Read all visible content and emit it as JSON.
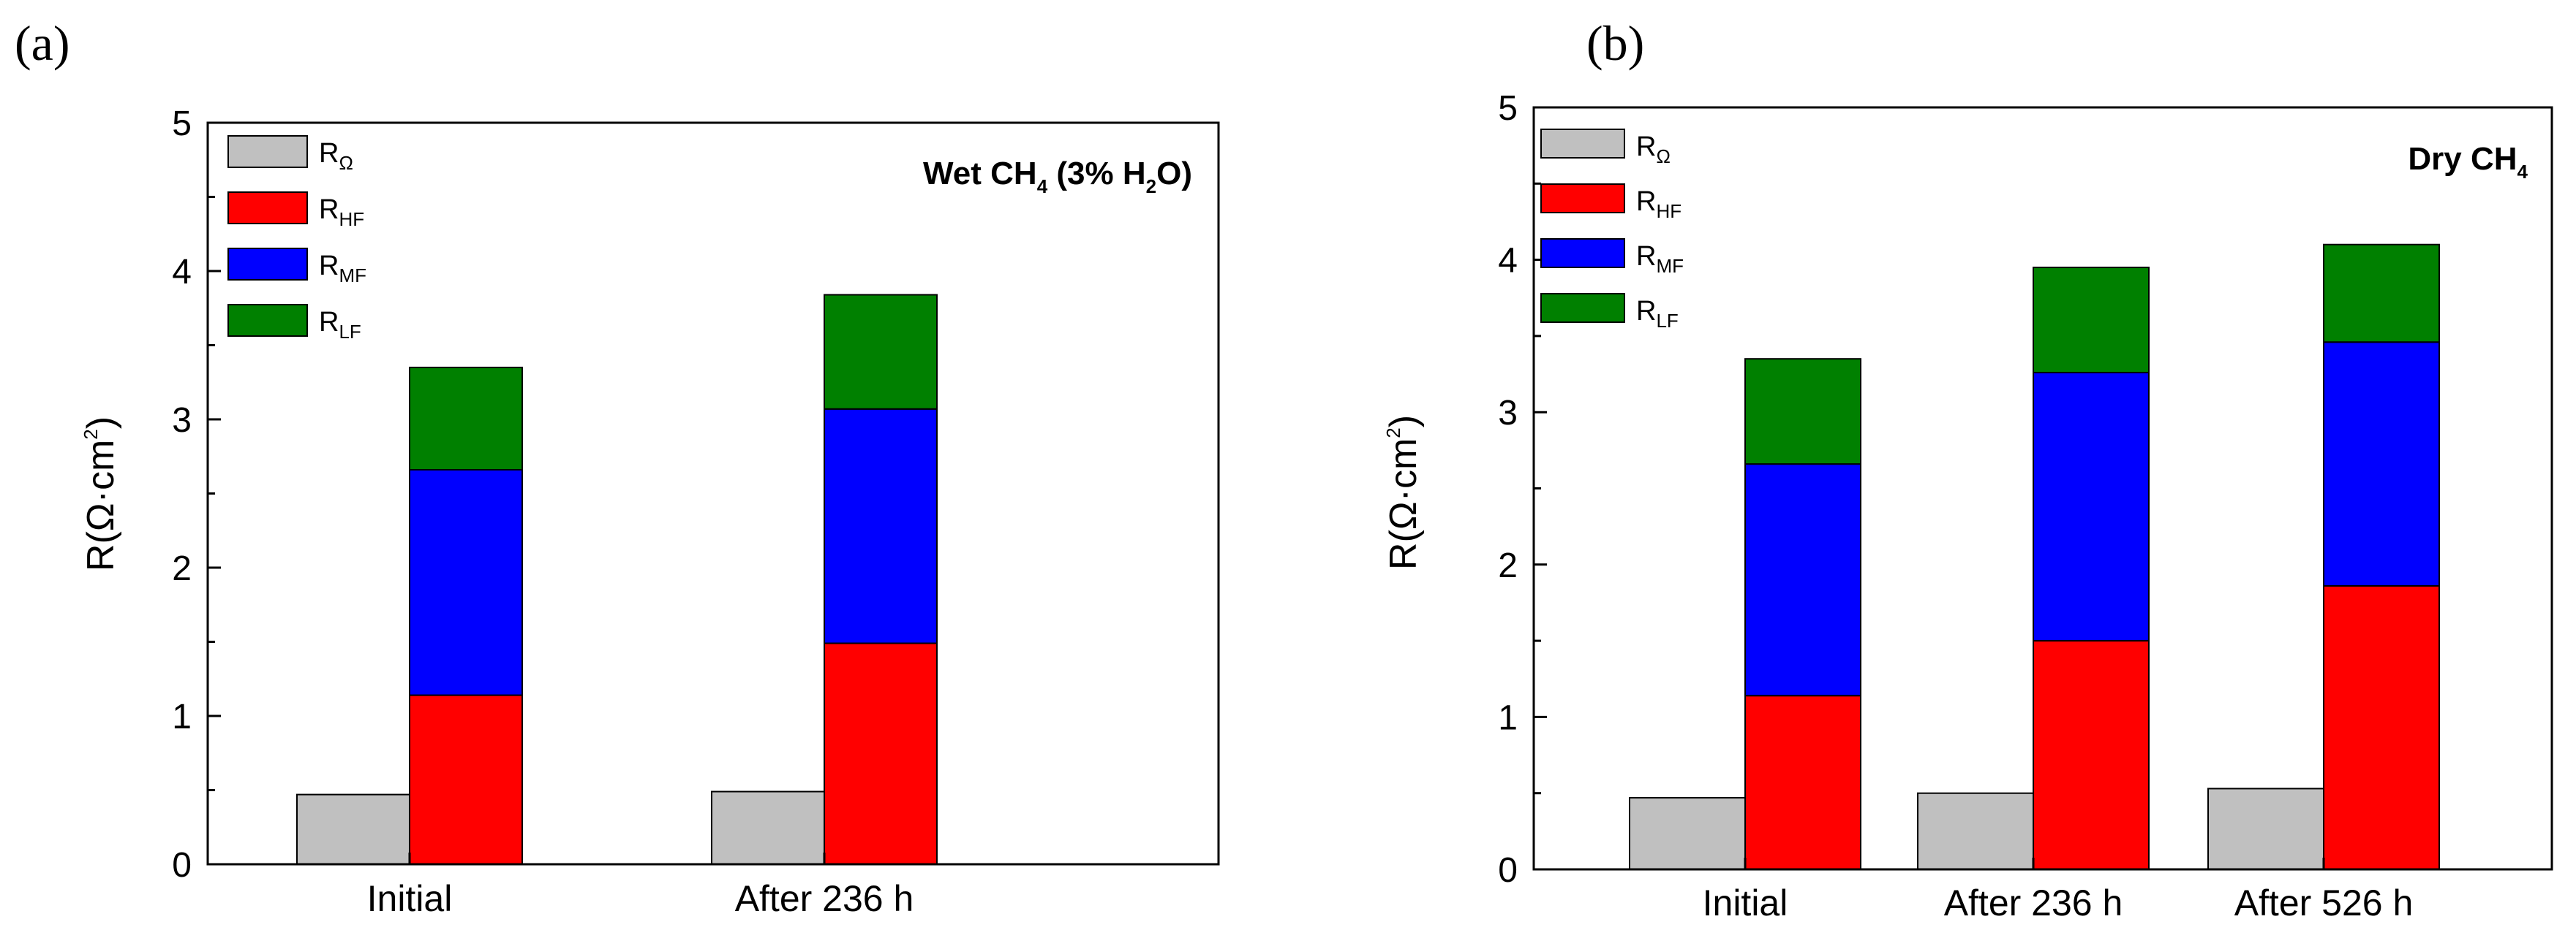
{
  "chart_data": [
    {
      "type": "bar",
      "panel_label": "(a)",
      "note": {
        "prefix": "Wet CH",
        "sub1": "4",
        "mid": " (3% H",
        "sub2": "2",
        "suffix": "O)"
      },
      "ylabel": {
        "main": "R(Ω·cm",
        "sup": "2",
        "close": ")"
      },
      "ylim": [
        0,
        5
      ],
      "yticks": [
        "0",
        "1",
        "2",
        "3",
        "4",
        "5"
      ],
      "categories": [
        "Initial",
        "After 236 h"
      ],
      "legend": [
        {
          "base": "R",
          "sub": "Ω",
          "color": "#c0c0c0"
        },
        {
          "base": "R",
          "sub": "HF",
          "color": "#ff0000"
        },
        {
          "base": "R",
          "sub": "MF",
          "color": "#0000ff"
        },
        {
          "base": "R",
          "sub": "LF",
          "color": "#008000"
        }
      ],
      "r_ohm": [
        0.47,
        0.49
      ],
      "stack": [
        {
          "name": "R_HF",
          "color": "#ff0000",
          "values": [
            1.14,
            1.49
          ]
        },
        {
          "name": "R_MF",
          "color": "#0000ff",
          "values": [
            1.52,
            1.58
          ]
        },
        {
          "name": "R_LF",
          "color": "#008000",
          "values": [
            0.69,
            0.77
          ]
        }
      ],
      "totals": [
        3.35,
        3.84
      ]
    },
    {
      "type": "bar",
      "panel_label": "(b)",
      "note": {
        "prefix": "Dry CH",
        "sub1": "4",
        "mid": "",
        "sub2": "",
        "suffix": ""
      },
      "ylabel": {
        "main": "R(Ω·cm",
        "sup": "2",
        "close": ")"
      },
      "ylim": [
        0,
        5
      ],
      "yticks": [
        "0",
        "1",
        "2",
        "3",
        "4",
        "5"
      ],
      "categories": [
        "Initial",
        "After 236 h",
        "After 526 h"
      ],
      "legend": [
        {
          "base": "R",
          "sub": "Ω",
          "color": "#c0c0c0"
        },
        {
          "base": "R",
          "sub": "HF",
          "color": "#ff0000"
        },
        {
          "base": "R",
          "sub": "MF",
          "color": "#0000ff"
        },
        {
          "base": "R",
          "sub": "LF",
          "color": "#008000"
        }
      ],
      "r_ohm": [
        0.47,
        0.5,
        0.53
      ],
      "stack": [
        {
          "name": "R_HF",
          "color": "#ff0000",
          "values": [
            1.14,
            1.5,
            1.86
          ]
        },
        {
          "name": "R_MF",
          "color": "#0000ff",
          "values": [
            1.52,
            1.76,
            1.6
          ]
        },
        {
          "name": "R_LF",
          "color": "#008000",
          "values": [
            0.69,
            0.69,
            0.64
          ]
        }
      ],
      "totals": [
        3.35,
        3.95,
        4.1
      ]
    }
  ]
}
